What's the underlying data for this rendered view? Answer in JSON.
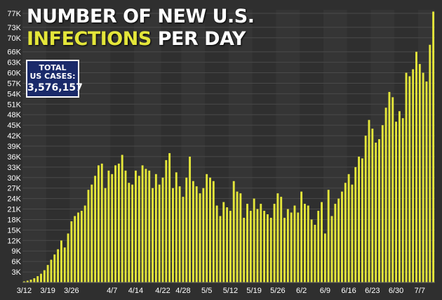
{
  "title": {
    "line1": "NUMBER OF NEW U.S.",
    "line2_accent": "INFECTIONS",
    "line2_rest": "PER DAY"
  },
  "total_box": {
    "label_line1": "TOTAL",
    "label_line2": "US CASES:",
    "value": "3,576,157"
  },
  "colors": {
    "background": "#2f2f2f",
    "bar": "#e4e63a",
    "grid": "#4a4a4a",
    "text": "#ffffff",
    "box": "#1a2a6a"
  },
  "chart_data": {
    "type": "bar",
    "ylim": [
      0,
      78000
    ],
    "yticks": [
      3000,
      6000,
      9000,
      12000,
      15000,
      18000,
      21000,
      24000,
      27000,
      30000,
      33000,
      36000,
      39000,
      42000,
      45000,
      48000,
      51000,
      54000,
      57000,
      60000,
      63000,
      66000,
      70000,
      73000,
      77000
    ],
    "ytick_labels": [
      "3K",
      "6K",
      "9K",
      "12K",
      "15K",
      "18K",
      "21K",
      "24K",
      "27K",
      "30K",
      "33K",
      "36K",
      "39K",
      "42K",
      "45K",
      "48K",
      "51K",
      "54K",
      "57K",
      "60K",
      "63K",
      "66K",
      "70K",
      "73K",
      "77K"
    ],
    "xtick_labels": [
      "3/12",
      "3/19",
      "3/26",
      "4/7",
      "4/14",
      "4/22",
      "4/28",
      "5/5",
      "5/12",
      "5/19",
      "5/26",
      "6/2",
      "6/9",
      "6/16",
      "6/23",
      "6/30",
      "7/7"
    ],
    "xtick_indices": [
      0,
      7,
      14,
      26,
      33,
      41,
      47,
      54,
      61,
      68,
      75,
      82,
      89,
      96,
      103,
      110,
      117
    ],
    "grid": true,
    "series": [
      {
        "values": [
          300,
          500,
          800,
          1200,
          1800,
          2500,
          3500,
          5000,
          6500,
          8000,
          9500,
          12000,
          10000,
          14000,
          17500,
          19000,
          20000,
          20500,
          22000,
          26500,
          28000,
          30500,
          33500,
          34000,
          27000,
          32000,
          31000,
          33500,
          34000,
          36500,
          32000,
          28500,
          28000,
          32000,
          30500,
          33500,
          32500,
          32000,
          27000,
          31000,
          28000,
          30000,
          35000,
          37000,
          27000,
          31500,
          27500,
          24500,
          30000,
          36000,
          29000,
          27500,
          25500,
          27000,
          31000,
          30000,
          29000,
          22000,
          19000,
          23000,
          21500,
          20500,
          29000,
          26000,
          25500,
          18500,
          22500,
          20500,
          24000,
          21000,
          22500,
          20500,
          19500,
          18500,
          22500,
          25500,
          24500,
          18500,
          21000,
          20000,
          22000,
          20000,
          26000,
          22500,
          22000,
          18000,
          16500,
          20500,
          23000,
          14000,
          26500,
          19000,
          22500,
          24000,
          26000,
          28500,
          31000,
          28000,
          33000,
          36000,
          35500,
          42000,
          46500,
          44000,
          40000,
          41000,
          45000,
          50000,
          54500,
          53000,
          46000,
          49000,
          47000,
          60000,
          59000,
          61000,
          66000,
          62500,
          60000,
          57500,
          68000,
          77500
        ]
      }
    ]
  }
}
